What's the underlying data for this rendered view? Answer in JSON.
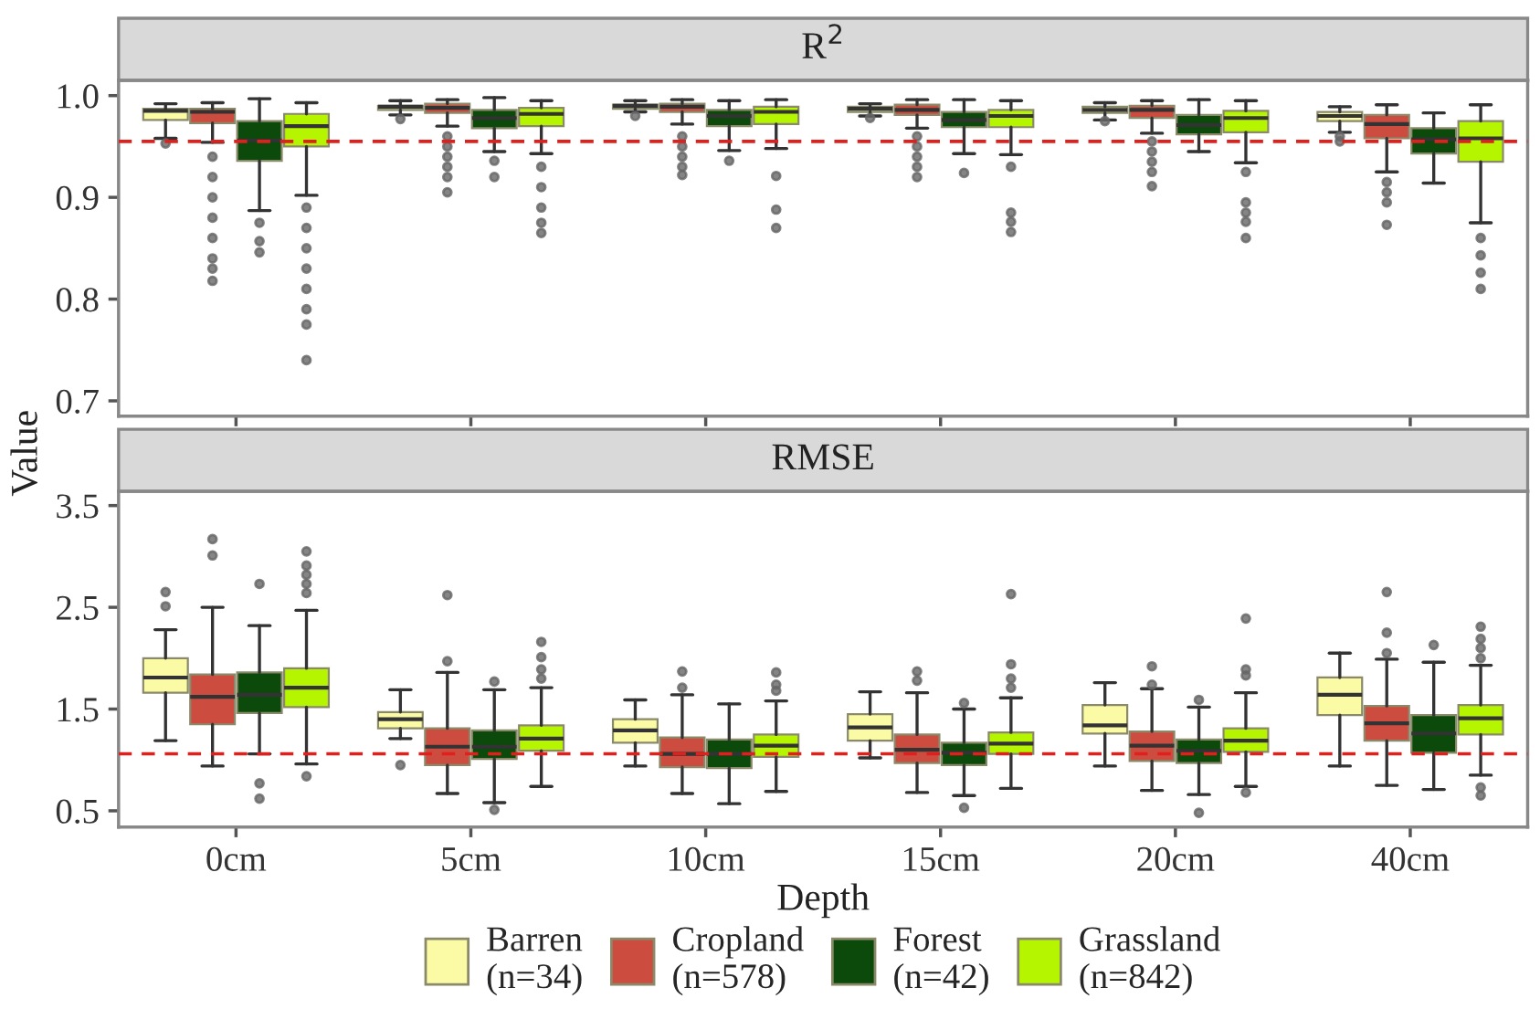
{
  "chart_data": [
    {
      "type": "box",
      "title": "R$^{2}$",
      "ylabel": "Value",
      "categories": [
        null,
        null,
        null,
        null,
        null,
        null
      ],
      "ylim": [
        0.685,
        1.015
      ],
      "yticks": [
        {
          "value": 0.7,
          "label": "0.7"
        },
        {
          "value": 0.8,
          "label": "0.8"
        },
        {
          "value": 0.9,
          "label": "0.9"
        },
        {
          "value": 1.0,
          "label": "1.0"
        }
      ],
      "tick_labels": "y",
      "grid": false,
      "ref_lines": [
        {
          "axis": "y",
          "value": 0.955,
          "label": null,
          "color": "#e0201c",
          "line_style": "dashed"
        }
      ],
      "series": [
        {
          "color": "#fbfba6",
          "boxes": [
            {
              "low": 0.958,
              "q1": 0.976,
              "median": 0.985,
              "q3": 0.987,
              "high": 0.992,
              "outliers": [
                0.953
              ]
            },
            {
              "low": 0.981,
              "q1": 0.986,
              "median": 0.989,
              "q3": 0.99,
              "high": 0.995,
              "outliers": [
                0.977
              ]
            },
            {
              "low": 0.984,
              "q1": 0.987,
              "median": 0.99,
              "q3": 0.991,
              "high": 0.995,
              "outliers": [
                0.98
              ]
            },
            {
              "low": 0.98,
              "q1": 0.984,
              "median": 0.987,
              "q3": 0.989,
              "high": 0.992,
              "outliers": [
                0.978
              ]
            },
            {
              "low": 0.976,
              "q1": 0.983,
              "median": 0.986,
              "q3": 0.989,
              "high": 0.993,
              "outliers": [
                0.975
              ]
            },
            {
              "low": 0.964,
              "q1": 0.975,
              "median": 0.98,
              "q3": 0.984,
              "high": 0.989,
              "outliers": [
                0.96,
                0.955
              ]
            }
          ]
        },
        {
          "color": "#cc4c3f",
          "boxes": [
            {
              "low": 0.954,
              "q1": 0.973,
              "median": 0.984,
              "q3": 0.987,
              "high": 0.993,
              "outliers": [
                0.94,
                0.92,
                0.9,
                0.88,
                0.86,
                0.84,
                0.83,
                0.818
              ]
            },
            {
              "low": 0.97,
              "q1": 0.983,
              "median": 0.988,
              "q3": 0.992,
              "high": 0.996,
              "outliers": [
                0.96,
                0.95,
                0.94,
                0.93,
                0.92,
                0.905
              ]
            },
            {
              "low": 0.972,
              "q1": 0.984,
              "median": 0.989,
              "q3": 0.992,
              "high": 0.996,
              "outliers": [
                0.96,
                0.95,
                0.94,
                0.93,
                0.922
              ]
            },
            {
              "low": 0.968,
              "q1": 0.981,
              "median": 0.986,
              "q3": 0.991,
              "high": 0.996,
              "outliers": [
                0.96,
                0.95,
                0.94,
                0.93,
                0.92
              ]
            },
            {
              "low": 0.963,
              "q1": 0.978,
              "median": 0.986,
              "q3": 0.99,
              "high": 0.995,
              "outliers": [
                0.955,
                0.945,
                0.935,
                0.925,
                0.911
              ]
            },
            {
              "low": 0.925,
              "q1": 0.958,
              "median": 0.972,
              "q3": 0.981,
              "high": 0.991,
              "outliers": [
                0.915,
                0.905,
                0.895,
                0.873
              ]
            }
          ]
        },
        {
          "color": "#0b4a0b",
          "boxes": [
            {
              "low": 0.887,
              "q1": 0.936,
              "median": 0.956,
              "q3": 0.975,
              "high": 0.997,
              "outliers": [
                0.875,
                0.857,
                0.846
              ]
            },
            {
              "low": 0.945,
              "q1": 0.968,
              "median": 0.978,
              "q3": 0.986,
              "high": 0.998,
              "outliers": [
                0.936,
                0.92
              ]
            },
            {
              "low": 0.946,
              "q1": 0.97,
              "median": 0.98,
              "q3": 0.986,
              "high": 0.995,
              "outliers": [
                0.936
              ]
            },
            {
              "low": 0.943,
              "q1": 0.969,
              "median": 0.976,
              "q3": 0.984,
              "high": 0.996,
              "outliers": [
                0.924
              ]
            },
            {
              "low": 0.945,
              "q1": 0.962,
              "median": 0.971,
              "q3": 0.981,
              "high": 0.996
            },
            {
              "low": 0.914,
              "q1": 0.943,
              "median": 0.957,
              "q3": 0.968,
              "high": 0.983
            }
          ]
        },
        {
          "color": "#b6f500",
          "boxes": [
            {
              "low": 0.902,
              "q1": 0.95,
              "median": 0.97,
              "q3": 0.982,
              "high": 0.993,
              "outliers": [
                0.89,
                0.87,
                0.85,
                0.83,
                0.81,
                0.79,
                0.775,
                0.74
              ]
            },
            {
              "low": 0.943,
              "q1": 0.97,
              "median": 0.982,
              "q3": 0.988,
              "high": 0.995,
              "outliers": [
                0.93,
                0.91,
                0.89,
                0.875,
                0.865
              ]
            },
            {
              "low": 0.948,
              "q1": 0.972,
              "median": 0.984,
              "q3": 0.989,
              "high": 0.996,
              "outliers": [
                0.921,
                0.888,
                0.87
              ]
            },
            {
              "low": 0.942,
              "q1": 0.969,
              "median": 0.98,
              "q3": 0.986,
              "high": 0.995,
              "outliers": [
                0.93,
                0.885,
                0.876,
                0.866
              ]
            },
            {
              "low": 0.934,
              "q1": 0.964,
              "median": 0.978,
              "q3": 0.985,
              "high": 0.995,
              "outliers": [
                0.925,
                0.895,
                0.885,
                0.876,
                0.86
              ]
            },
            {
              "low": 0.875,
              "q1": 0.935,
              "median": 0.958,
              "q3": 0.975,
              "high": 0.991,
              "outliers": [
                0.86,
                0.843,
                0.826,
                0.81
              ]
            }
          ]
        }
      ]
    },
    {
      "type": "box",
      "title": "RMSE",
      "xlabel": "Depth",
      "categories": [
        "0cm",
        "5cm",
        "10cm",
        "15cm",
        "20cm",
        "40cm"
      ],
      "ylim": [
        0.34,
        3.64
      ],
      "yticks": [
        0.5,
        1.5,
        2.5,
        3.5
      ],
      "grid": false,
      "legend": "bottom",
      "ref_lines": [
        {
          "axis": "y",
          "value": 1.06,
          "label": null,
          "color": "#e0201c",
          "line_style": "dashed"
        }
      ],
      "series": [
        {
          "name": "Barren\n(n=34)",
          "color": "#fbfba6",
          "boxes": [
            {
              "low": 1.19,
              "q1": 1.66,
              "median": 1.81,
              "q3": 2.0,
              "high": 2.28,
              "outliers": [
                2.65,
                2.51
              ]
            },
            {
              "low": 1.21,
              "q1": 1.31,
              "median": 1.4,
              "q3": 1.47,
              "high": 1.69,
              "outliers": [
                0.95
              ]
            },
            {
              "low": 0.94,
              "q1": 1.17,
              "median": 1.29,
              "q3": 1.4,
              "high": 1.59
            },
            {
              "low": 1.02,
              "q1": 1.19,
              "median": 1.32,
              "q3": 1.45,
              "high": 1.67
            },
            {
              "low": 0.94,
              "q1": 1.26,
              "median": 1.34,
              "q3": 1.54,
              "high": 1.76
            },
            {
              "low": 0.94,
              "q1": 1.44,
              "median": 1.64,
              "q3": 1.81,
              "high": 2.05
            }
          ]
        },
        {
          "name": "Cropland\n(n=578)",
          "color": "#cc4c3f",
          "boxes": [
            {
              "low": 0.94,
              "q1": 1.35,
              "median": 1.62,
              "q3": 1.84,
              "high": 2.5,
              "outliers": [
                3.17,
                3.01
              ]
            },
            {
              "low": 0.67,
              "q1": 0.95,
              "median": 1.13,
              "q3": 1.31,
              "high": 1.86,
              "outliers": [
                2.62,
                1.97
              ]
            },
            {
              "low": 0.67,
              "q1": 0.93,
              "median": 1.06,
              "q3": 1.22,
              "high": 1.64,
              "outliers": [
                1.87,
                1.71
              ]
            },
            {
              "low": 0.68,
              "q1": 0.97,
              "median": 1.1,
              "q3": 1.25,
              "high": 1.66,
              "outliers": [
                1.87,
                1.78
              ]
            },
            {
              "low": 0.7,
              "q1": 0.99,
              "median": 1.14,
              "q3": 1.28,
              "high": 1.7,
              "outliers": [
                1.92,
                1.74
              ]
            },
            {
              "low": 0.75,
              "q1": 1.19,
              "median": 1.36,
              "q3": 1.53,
              "high": 1.99,
              "outliers": [
                2.65,
                2.25,
                2.05
              ]
            }
          ]
        },
        {
          "name": "Forest\n(n=42)",
          "color": "#0b4a0b",
          "boxes": [
            {
              "low": 1.06,
              "q1": 1.46,
              "median": 1.64,
              "q3": 1.86,
              "high": 2.32,
              "outliers": [
                2.73,
                0.77,
                0.62
              ]
            },
            {
              "low": 0.58,
              "q1": 1.01,
              "median": 1.13,
              "q3": 1.29,
              "high": 1.69,
              "outliers": [
                1.77,
                0.51
              ]
            },
            {
              "low": 0.57,
              "q1": 0.92,
              "median": 1.06,
              "q3": 1.2,
              "high": 1.55
            },
            {
              "low": 0.65,
              "q1": 0.95,
              "median": 1.07,
              "q3": 1.17,
              "high": 1.5,
              "outliers": [
                1.56,
                0.53
              ]
            },
            {
              "low": 0.66,
              "q1": 0.97,
              "median": 1.09,
              "q3": 1.2,
              "high": 1.52,
              "outliers": [
                1.59,
                0.48
              ]
            },
            {
              "low": 0.71,
              "q1": 1.07,
              "median": 1.26,
              "q3": 1.44,
              "high": 1.96,
              "outliers": [
                2.13
              ]
            }
          ]
        },
        {
          "name": "Grassland\n(n=842)",
          "color": "#b6f500",
          "boxes": [
            {
              "low": 0.96,
              "q1": 1.52,
              "median": 1.71,
              "q3": 1.9,
              "high": 2.47,
              "outliers": [
                3.05,
                2.91,
                2.82,
                2.73,
                2.64,
                0.84
              ]
            },
            {
              "low": 0.74,
              "q1": 1.09,
              "median": 1.21,
              "q3": 1.34,
              "high": 1.71,
              "outliers": [
                2.16,
                2.01,
                1.89,
                1.8
              ]
            },
            {
              "low": 0.69,
              "q1": 1.03,
              "median": 1.14,
              "q3": 1.25,
              "high": 1.58,
              "outliers": [
                1.86,
                1.74,
                1.68
              ]
            },
            {
              "low": 0.72,
              "q1": 1.06,
              "median": 1.16,
              "q3": 1.27,
              "high": 1.61,
              "outliers": [
                2.63,
                1.94,
                1.8,
                1.71
              ]
            },
            {
              "low": 0.74,
              "q1": 1.08,
              "median": 1.19,
              "q3": 1.31,
              "high": 1.66,
              "outliers": [
                2.39,
                1.89,
                1.83,
                0.68
              ]
            },
            {
              "low": 0.85,
              "q1": 1.25,
              "median": 1.41,
              "q3": 1.54,
              "high": 1.93,
              "outliers": [
                2.31,
                2.19,
                2.1,
                2.0,
                0.73,
                0.65
              ]
            }
          ]
        }
      ]
    }
  ]
}
